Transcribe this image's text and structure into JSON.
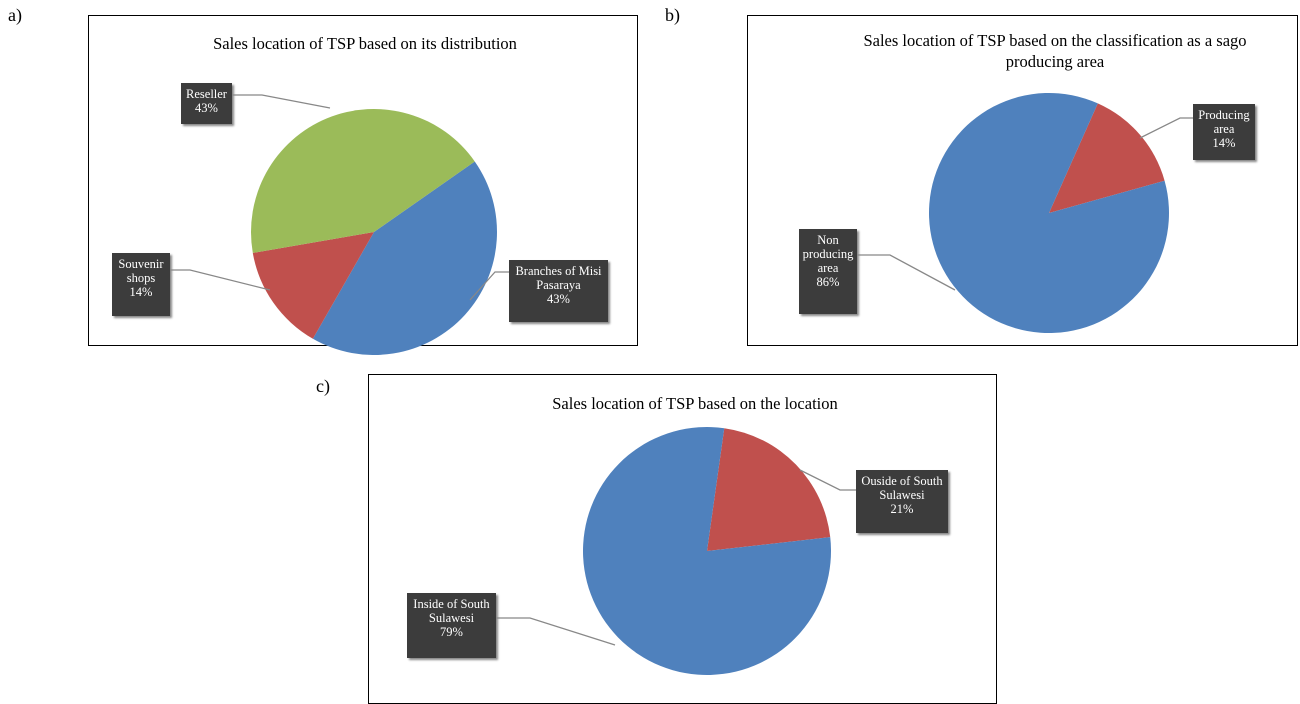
{
  "chart_data": [
    {
      "type": "pie",
      "label": "a)",
      "title": "Sales location of TSP based on its distribution",
      "categories": [
        "Branches of Misi Pasaraya",
        "Souvenir shops",
        "Reseller"
      ],
      "values": [
        43,
        14,
        43
      ],
      "value_labels": [
        "43%",
        "14%",
        "43%"
      ],
      "colors": [
        "#4f81bd",
        "#c0504d",
        "#9bbb59"
      ]
    },
    {
      "type": "pie",
      "label": "b)",
      "title": "Sales location of TSP based on the classification as a sago producing area",
      "categories": [
        "Producing area",
        "Non producing area"
      ],
      "values": [
        14,
        86
      ],
      "value_labels": [
        "14%",
        "86%"
      ],
      "colors": [
        "#c0504d",
        "#4f81bd"
      ]
    },
    {
      "type": "pie",
      "label": "c)",
      "title": "Sales location of TSP based on the location",
      "categories": [
        "Ouside of South Sulawesi",
        "Inside of South Sulawesi"
      ],
      "values": [
        21,
        79
      ],
      "value_labels": [
        "21%",
        "79%"
      ],
      "colors": [
        "#c0504d",
        "#4f81bd"
      ]
    }
  ]
}
